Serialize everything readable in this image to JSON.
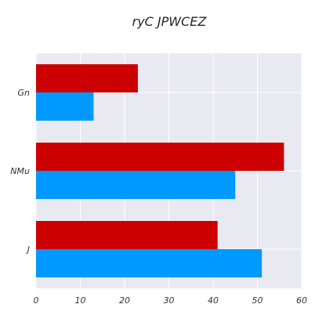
{
  "chart_data": {
    "type": "bar",
    "orientation": "horizontal",
    "title": "ryC  JPWCEZ",
    "xlabel": "",
    "ylabel": "",
    "categories": [
      "Gn",
      "NMu",
      "J"
    ],
    "series": [
      {
        "color": "#cc0000",
        "values": [
          23,
          56,
          41
        ]
      },
      {
        "color": "#0099ff",
        "values": [
          13,
          45,
          51
        ]
      }
    ],
    "xlim": [
      0,
      60
    ],
    "xticks": [
      0,
      10,
      20,
      30,
      40,
      50,
      60
    ],
    "xtick_labels": [
      "0",
      "10",
      "20",
      "30",
      "40",
      "50",
      "60"
    ],
    "grid": true,
    "legend": "none",
    "background": "#e9e9f2"
  }
}
